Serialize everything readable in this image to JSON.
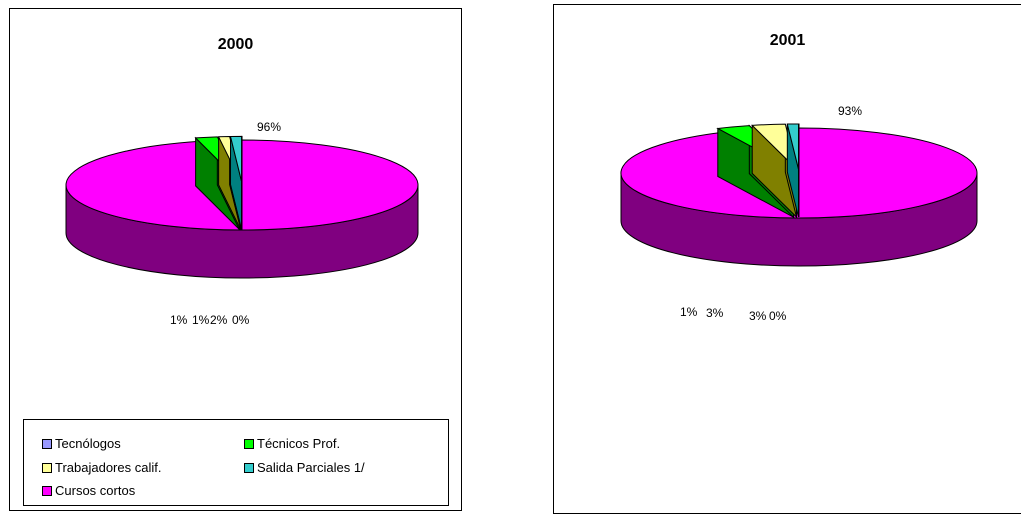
{
  "chart_data": [
    {
      "type": "pie",
      "title": "2000",
      "categories": [
        "Tecnólogos",
        "Técnicos Prof.",
        "Trabajadores calif.",
        "Salida Parciales 1/",
        "Cursos cortos"
      ],
      "values": [
        0,
        2,
        1,
        1,
        96
      ],
      "data_labels": [
        "0%",
        "2%",
        "1%",
        "1%",
        "96%"
      ],
      "legend": "bottom"
    },
    {
      "type": "pie",
      "title": "2001",
      "categories": [
        "Tecnólogos",
        "Técnicos Prof.",
        "Trabajadores calif.",
        "Salida Parciales 1/",
        "Cursos cortos"
      ],
      "values": [
        0,
        3,
        3,
        1,
        93
      ],
      "data_labels": [
        "0%",
        "3%",
        "3%",
        "1%",
        "93%"
      ],
      "legend": "none"
    }
  ],
  "colors": {
    "Tecnólogos": "#9999ff",
    "Técnicos Prof.": "#00ff00",
    "Trabajadores calif.": "#ffff99",
    "Salida Parciales 1/": "#33cccc",
    "Cursos cortos": "#ff00ff"
  },
  "legend_items": [
    "Tecnólogos",
    "Técnicos Prof.",
    "Trabajadores calif.",
    "Salida Parciales 1/",
    "Cursos cortos"
  ]
}
